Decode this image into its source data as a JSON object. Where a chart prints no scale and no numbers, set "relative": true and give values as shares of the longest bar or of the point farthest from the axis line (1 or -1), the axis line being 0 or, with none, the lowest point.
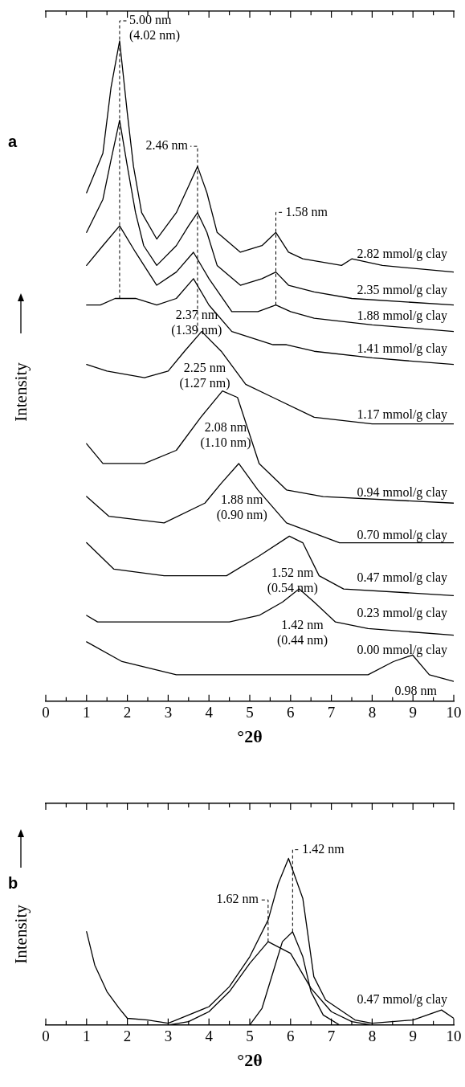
{
  "chart_data": [
    {
      "type": "line",
      "title": "a",
      "xlabel": "°2θ",
      "ylabel": "Intensity",
      "relative": true,
      "legend": false,
      "xlim": [
        0,
        10
      ],
      "xticks": [
        0,
        {
          "value": 0.5,
          "label": null
        },
        1,
        {
          "value": 1.5,
          "label": null
        },
        2,
        {
          "value": 2.5,
          "label": null
        },
        3,
        {
          "value": 3.5,
          "label": null
        },
        4,
        {
          "value": 4.5,
          "label": null
        },
        5,
        {
          "value": 5.5,
          "label": null
        },
        6,
        {
          "value": 6.5,
          "label": null
        },
        7,
        {
          "value": 7.5,
          "label": null
        },
        8,
        {
          "value": 8.5,
          "label": null
        },
        9,
        {
          "value": 9.5,
          "label": null
        },
        10
      ],
      "series": [
        {
          "name": "2.82 mmol/g clay",
          "color": "#000000",
          "x": [
            1,
            1.4,
            1.6,
            1.81,
            2.0,
            2.15,
            2.35,
            2.72,
            3.2,
            3.5,
            3.72,
            3.95,
            4.2,
            4.77,
            5.3,
            5.64,
            5.95,
            6.3,
            7.25,
            7.5,
            8.25,
            10
          ],
          "values": [
            0.77,
            0.83,
            0.93,
            1,
            0.89,
            0.81,
            0.74,
            0.7,
            0.74,
            0.78,
            0.81,
            0.77,
            0.71,
            0.68,
            0.69,
            0.71,
            0.68,
            0.67,
            0.66,
            0.67,
            0.66,
            0.65
          ]
        },
        {
          "name": "2.35 mmol/g clay",
          "color": "#000000",
          "x": [
            1,
            1.4,
            1.6,
            1.81,
            2.0,
            2.2,
            2.4,
            2.72,
            3.2,
            3.5,
            3.72,
            3.95,
            4.2,
            4.77,
            5.3,
            5.64,
            5.95,
            6.58,
            7.5,
            10
          ],
          "values": [
            0.71,
            0.76,
            0.82,
            0.88,
            0.81,
            0.74,
            0.69,
            0.66,
            0.69,
            0.72,
            0.74,
            0.71,
            0.66,
            0.63,
            0.64,
            0.65,
            0.63,
            0.62,
            0.61,
            0.6
          ]
        },
        {
          "name": "1.88 mmol/g clay",
          "color": "#000000",
          "x": [
            1,
            1.4,
            1.81,
            2.2,
            2.72,
            3.2,
            3.62,
            4.0,
            4.56,
            5.2,
            5.64,
            6.0,
            6.58,
            8,
            10
          ],
          "values": [
            0.66,
            0.69,
            0.72,
            0.68,
            0.63,
            0.65,
            0.68,
            0.64,
            0.59,
            0.59,
            0.6,
            0.59,
            0.58,
            0.57,
            0.56
          ]
        },
        {
          "name": "1.41 mmol/g clay",
          "color": "#000000",
          "x": [
            1,
            1.34,
            1.7,
            2.2,
            2.72,
            3.2,
            3.62,
            4.0,
            4.56,
            5.57,
            5.9,
            6.58,
            8,
            10
          ],
          "values": [
            0.6,
            0.6,
            0.61,
            0.61,
            0.6,
            0.61,
            0.64,
            0.6,
            0.56,
            0.54,
            0.54,
            0.53,
            0.52,
            0.51
          ]
        },
        {
          "name": "1.17 mmol/g clay",
          "color": "#000000",
          "x": [
            1,
            1.5,
            2.42,
            3.0,
            3.4,
            3.82,
            4.3,
            4.9,
            5.57,
            6.58,
            8,
            10
          ],
          "values": [
            0.51,
            0.5,
            0.49,
            0.5,
            0.53,
            0.56,
            0.53,
            0.48,
            0.46,
            0.43,
            0.42,
            0.42
          ]
        },
        {
          "name": "0.94 mmol/g clay",
          "color": "#000000",
          "x": [
            1,
            1.4,
            2.42,
            3.2,
            3.8,
            4.33,
            4.7,
            5.23,
            5.9,
            6.8,
            10
          ],
          "values": [
            0.39,
            0.36,
            0.36,
            0.38,
            0.43,
            0.47,
            0.46,
            0.36,
            0.32,
            0.31,
            0.3
          ]
        },
        {
          "name": "0.70 mmol/g clay",
          "color": "#000000",
          "x": [
            1,
            1.55,
            2.9,
            3.9,
            4.3,
            4.73,
            5.2,
            5.9,
            7.2,
            10
          ],
          "values": [
            0.31,
            0.28,
            0.27,
            0.3,
            0.33,
            0.36,
            0.32,
            0.27,
            0.24,
            0.24
          ]
        },
        {
          "name": "0.47 mmol/g clay",
          "color": "#000000",
          "x": [
            1,
            1.67,
            2.9,
            4.43,
            5.23,
            5.97,
            6.3,
            6.7,
            7.3,
            10
          ],
          "values": [
            0.24,
            0.2,
            0.19,
            0.19,
            0.22,
            0.25,
            0.24,
            0.19,
            0.17,
            0.16
          ]
        },
        {
          "name": "0.23 mmol/g clay",
          "color": "#000000",
          "x": [
            1,
            1.27,
            4.5,
            5.23,
            5.8,
            6.21,
            6.58,
            7.1,
            7.9,
            10
          ],
          "values": [
            0.13,
            0.12,
            0.12,
            0.13,
            0.15,
            0.17,
            0.15,
            0.12,
            0.11,
            0.1
          ]
        },
        {
          "name": "0.00 mmol/g clay",
          "color": "#000000",
          "x": [
            1,
            1.87,
            3.2,
            5.23,
            7.9,
            8.52,
            8.99,
            9.4,
            10
          ],
          "values": [
            0.09,
            0.06,
            0.04,
            0.04,
            0.04,
            0.06,
            0.07,
            0.04,
            0.03
          ]
        }
      ],
      "ref_lines": [
        {
          "axis": "x",
          "value": 1.81,
          "label": "5.00 nm\n(4.02 nm)",
          "line_style": "dashed"
        },
        {
          "axis": "x",
          "value": 3.72,
          "label": "2.46 nm",
          "line_style": "dashed"
        },
        {
          "axis": "x",
          "value": 5.64,
          "label": "1.58 nm",
          "line_style": "dashed"
        }
      ],
      "annotations": [
        {
          "text": "2.37 nm\n(1.39 nm)",
          "x": 3.62,
          "y": 0.64
        },
        {
          "text": "2.25 nm\n(1.27 nm)",
          "x": 3.82,
          "y": 0.56
        },
        {
          "text": "2.08 nm\n(1.10 nm)",
          "x": 4.33,
          "y": 0.47
        },
        {
          "text": "1.88 nm\n(0.90 nm)",
          "x": 4.73,
          "y": 0.36
        },
        {
          "text": "1.52 nm\n(0.54 nm)",
          "x": 5.97,
          "y": 0.25
        },
        {
          "text": "1.42 nm\n(0.44 nm)",
          "x": 6.21,
          "y": 0.17
        },
        {
          "text": "0.98 nm",
          "x": 8.99,
          "y": 0.07
        }
      ]
    },
    {
      "type": "line",
      "title": "b",
      "xlabel": "°2θ",
      "ylabel": "Intensity",
      "relative": true,
      "legend": false,
      "xlim": [
        0,
        10
      ],
      "xticks": [
        0,
        {
          "value": 0.5,
          "label": null
        },
        1,
        {
          "value": 1.5,
          "label": null
        },
        2,
        {
          "value": 2.5,
          "label": null
        },
        3,
        {
          "value": 3.5,
          "label": null
        },
        4,
        {
          "value": 4.5,
          "label": null
        },
        5,
        {
          "value": 5.5,
          "label": null
        },
        6,
        {
          "value": 6.5,
          "label": null
        },
        7,
        {
          "value": 7.5,
          "label": null
        },
        8,
        {
          "value": 8.5,
          "label": null
        },
        9,
        {
          "value": 9.5,
          "label": null
        },
        10
      ],
      "series": [
        {
          "name": "0.47 mmol/g clay",
          "color": "#000000",
          "x": [
            1,
            1.2,
            1.5,
            1.8,
            2,
            2.5,
            3,
            3.5,
            4,
            4.5,
            5,
            5.45,
            5.7,
            5.95,
            6.3,
            6.57,
            6.86,
            7.58,
            8,
            9,
            9.7,
            10
          ],
          "values": [
            0.56,
            0.36,
            0.2,
            0.1,
            0.04,
            0.03,
            0.01,
            0.06,
            0.11,
            0.23,
            0.41,
            0.63,
            0.85,
            1,
            0.76,
            0.29,
            0.15,
            0.03,
            0.01,
            0.03,
            0.09,
            0.04
          ]
        },
        {
          "color": "#000000",
          "x": [
            3,
            3.5,
            4,
            4.5,
            5,
            5.45,
            6,
            6.5,
            7,
            7.5,
            8
          ],
          "values": [
            0,
            0.02,
            0.08,
            0.2,
            0.37,
            0.5,
            0.43,
            0.22,
            0.08,
            0.02,
            0
          ]
        },
        {
          "color": "#000000",
          "x": [
            5,
            5.3,
            5.6,
            5.8,
            6.05,
            6.3,
            6.5,
            6.8,
            7.2
          ],
          "values": [
            0,
            0.1,
            0.34,
            0.5,
            0.56,
            0.41,
            0.2,
            0.06,
            0
          ]
        }
      ],
      "ref_lines": [
        {
          "axis": "x",
          "value": 6.05,
          "label": "1.42 nm",
          "line_style": "dashed"
        },
        {
          "axis": "x",
          "value": 5.45,
          "label": "1.62 nm",
          "line_style": "dashed"
        }
      ]
    }
  ]
}
